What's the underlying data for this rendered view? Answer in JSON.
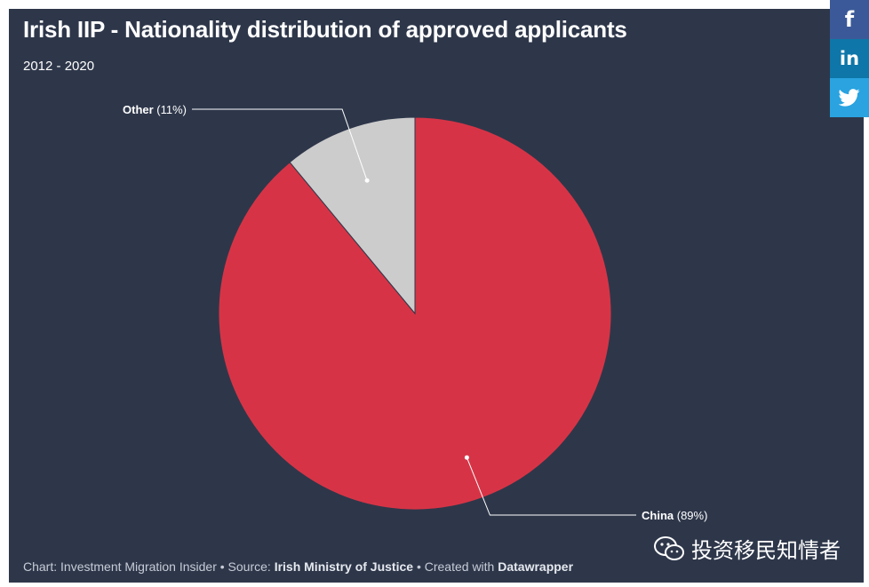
{
  "title": "Irish IIP - Nationality distribution of approved applicants",
  "subtitle": "2012 - 2020",
  "colors": {
    "background": "#2e374a",
    "china": "#d63446",
    "other": "#cccccc"
  },
  "footer": {
    "prefix": "Chart: Investment Migration Insider • Source: ",
    "source": "Irish Ministry of Justice",
    "mid": " • Created with ",
    "tool": "Datawrapper"
  },
  "social": {
    "facebook": "f",
    "linkedin": "in",
    "twitter_icon": "twitter-icon"
  },
  "watermark": "投资移民知情者",
  "chart_data": {
    "type": "pie",
    "slices": [
      {
        "label": "China",
        "value": 89,
        "pct_text": "(89%)",
        "color": "#d63446"
      },
      {
        "label": "Other",
        "value": 11,
        "pct_text": "(11%)",
        "color": "#cccccc"
      }
    ]
  }
}
